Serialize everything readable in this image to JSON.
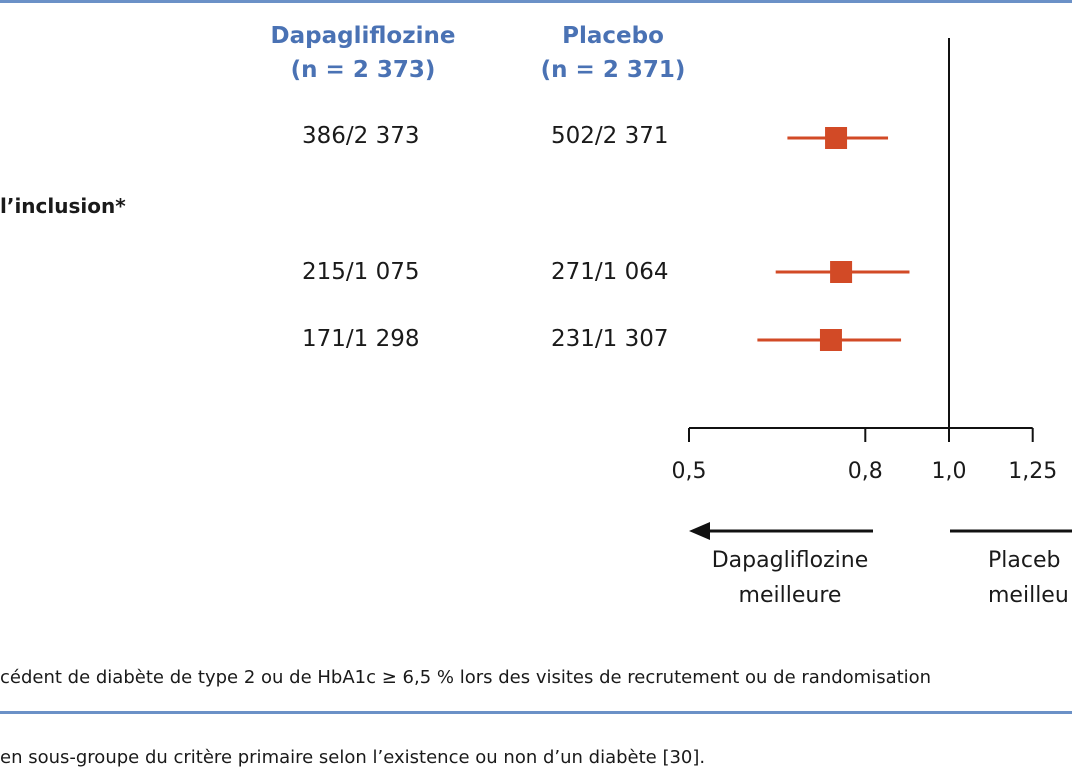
{
  "columns": {
    "dapa": {
      "name": "Dapagliflozine",
      "n": "(n = 2 373)"
    },
    "placebo": {
      "name": "Placebo",
      "n": "(n = 2 371)"
    }
  },
  "section_label": "l’inclusion*",
  "rows": [
    {
      "dapa": "386/2 373",
      "placebo": "502/2 371"
    },
    {
      "dapa": "215/1 075",
      "placebo": "271/1 064"
    },
    {
      "dapa": "171/1 298",
      "placebo": "231/1 307"
    }
  ],
  "directions": {
    "left": {
      "line1": "Dapagliflozine",
      "line2": "meilleure"
    },
    "right": {
      "line1": "Placeb",
      "line2": "meilleu"
    }
  },
  "footnote": "cédent de diabète de type 2 ou de HbA1c ≥ 6,5 % lors des visites de recrutement ou de randomisation",
  "caption": "en sous-groupe du critère primaire selon l’existence ou non d’un diabète [30].",
  "colors": {
    "accent": "#4a72b4",
    "marker": "#d24a26",
    "rule": "#6b91c7"
  },
  "chart_data": {
    "type": "forest",
    "x_ticks": [
      0.5,
      0.8,
      1.0,
      1.25
    ],
    "x_tick_labels": [
      "0,5",
      "0,8",
      "1,0",
      "1,25"
    ],
    "reference_line": 1.0,
    "points": [
      {
        "estimate": 0.74,
        "ci_low": 0.65,
        "ci_high": 0.85
      },
      {
        "estimate": 0.75,
        "ci_low": 0.63,
        "ci_high": 0.9
      },
      {
        "estimate": 0.73,
        "ci_low": 0.6,
        "ci_high": 0.88
      }
    ]
  }
}
